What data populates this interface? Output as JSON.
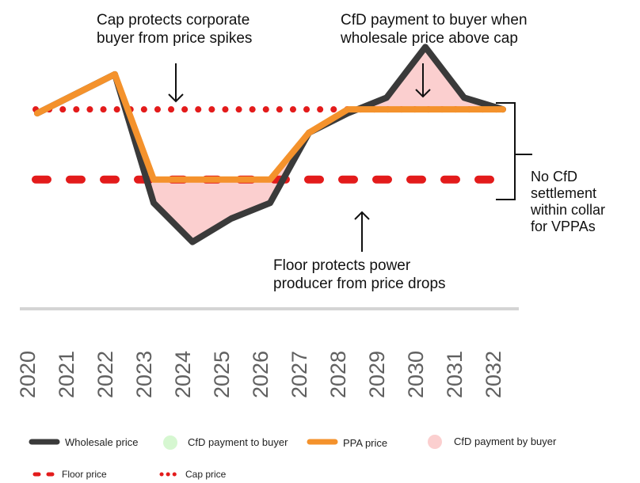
{
  "chart_data": {
    "type": "line",
    "x": [
      "2020",
      "2021",
      "2022",
      "2023",
      "2024",
      "2025",
      "2026",
      "2027",
      "2028",
      "2029",
      "2030",
      "2031",
      "2032"
    ],
    "series": [
      {
        "name": "Wholesale price",
        "color": "#3a3a3a",
        "values": [
          55,
          60,
          65,
          32,
          22,
          28,
          32,
          50,
          55,
          59,
          72,
          59,
          56
        ]
      },
      {
        "name": "PPA price",
        "color": "#f4922c",
        "values": [
          55,
          60,
          65,
          38,
          38,
          38,
          38,
          50,
          56,
          56,
          56,
          56,
          56
        ]
      }
    ],
    "floor_price": 38,
    "cap_price": 56,
    "ylim": [
      15,
      80
    ],
    "legend_placement": "bottom",
    "legend": [
      {
        "label": "Wholesale price",
        "type": "line",
        "color": "#3a3a3a"
      },
      {
        "label": "CfD payment to buyer",
        "type": "circle",
        "color": "#d6f7d1"
      },
      {
        "label": "PPA price",
        "type": "line",
        "color": "#f4922c"
      },
      {
        "label": "CfD payment by buyer",
        "type": "circle",
        "color": "#fbcfcf"
      },
      {
        "label": "Floor price",
        "type": "dash",
        "color": "#e31b1b"
      },
      {
        "label": "Cap price",
        "type": "dot",
        "color": "#e31b1b"
      }
    ],
    "annotations": {
      "cap_note": [
        "Cap protects corporate",
        "buyer from price spikes"
      ],
      "cfd_note": [
        "CfD payment to buyer when",
        "wholesale price above cap"
      ],
      "floor_note": [
        "Floor protects power",
        "producer from price drops"
      ],
      "collar_note": [
        "No CfD",
        "settlement",
        "within collar",
        "for VPPAs"
      ]
    },
    "colors": {
      "buyer_payment_fill": "#d6f7d1",
      "producer_payment_fill": "#fbcfcf",
      "floor_cap": "#e31b1b"
    }
  }
}
